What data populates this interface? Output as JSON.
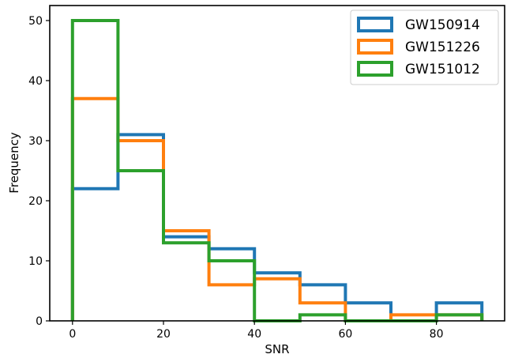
{
  "chart_data": {
    "type": "histogram",
    "histtype": "step",
    "xlabel": "SNR",
    "ylabel": "Frequency",
    "xlim": [
      -5,
      95
    ],
    "ylim": [
      0,
      52.5
    ],
    "xticks": [
      0,
      20,
      40,
      60,
      80
    ],
    "yticks": [
      0,
      10,
      20,
      30,
      40,
      50
    ],
    "bin_edges": [
      0,
      10,
      20,
      30,
      40,
      50,
      60,
      70,
      80,
      90
    ],
    "grid": false,
    "legend_position": "top-right",
    "series": [
      {
        "name": "GW150914",
        "color": "#1f77b4",
        "values": [
          22,
          31,
          14,
          12,
          8,
          6,
          3,
          0,
          3
        ]
      },
      {
        "name": "GW151226",
        "color": "#ff7f0e",
        "values": [
          37,
          30,
          15,
          6,
          7,
          3,
          0,
          1,
          1
        ]
      },
      {
        "name": "GW151012",
        "color": "#2ca02c",
        "values": [
          50,
          25,
          13,
          10,
          0,
          1,
          0,
          0,
          1
        ]
      }
    ]
  }
}
